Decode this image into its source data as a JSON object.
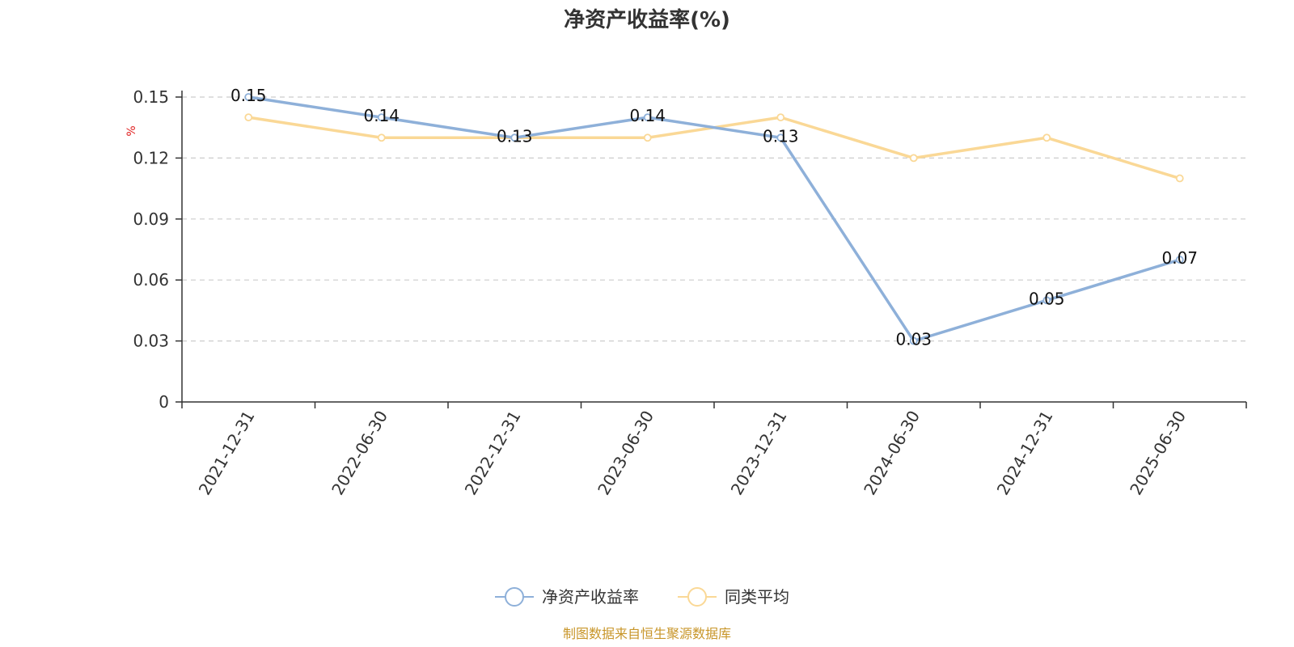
{
  "chart_data": {
    "type": "line",
    "title": "净资产收益率(%)",
    "ylabel": "%",
    "categories": [
      "2021-12-31",
      "2022-06-30",
      "2022-12-31",
      "2023-06-30",
      "2023-12-31",
      "2024-06-30",
      "2024-12-31",
      "2025-06-30"
    ],
    "yticks": [
      "0",
      "0.03",
      "0.06",
      "0.09",
      "0.12",
      "0.15"
    ],
    "ylim": [
      0,
      0.15
    ],
    "grid": true,
    "legend_position": "bottom-center",
    "series": [
      {
        "name": "净资产收益率",
        "color": "#8eb0d9",
        "values": [
          0.15,
          0.14,
          0.13,
          0.14,
          0.13,
          0.03,
          0.05,
          0.07
        ],
        "labels": [
          "0.15",
          "0.14",
          "0.13",
          "0.14",
          "0.13",
          "0.03",
          "0.05",
          "0.07"
        ]
      },
      {
        "name": "同类平均",
        "color": "#fad896",
        "values": [
          0.14,
          0.13,
          0.13,
          0.13,
          0.14,
          0.12,
          0.13,
          0.11
        ]
      }
    ]
  },
  "footer": {
    "source": "制图数据来自恒生聚源数据库"
  }
}
